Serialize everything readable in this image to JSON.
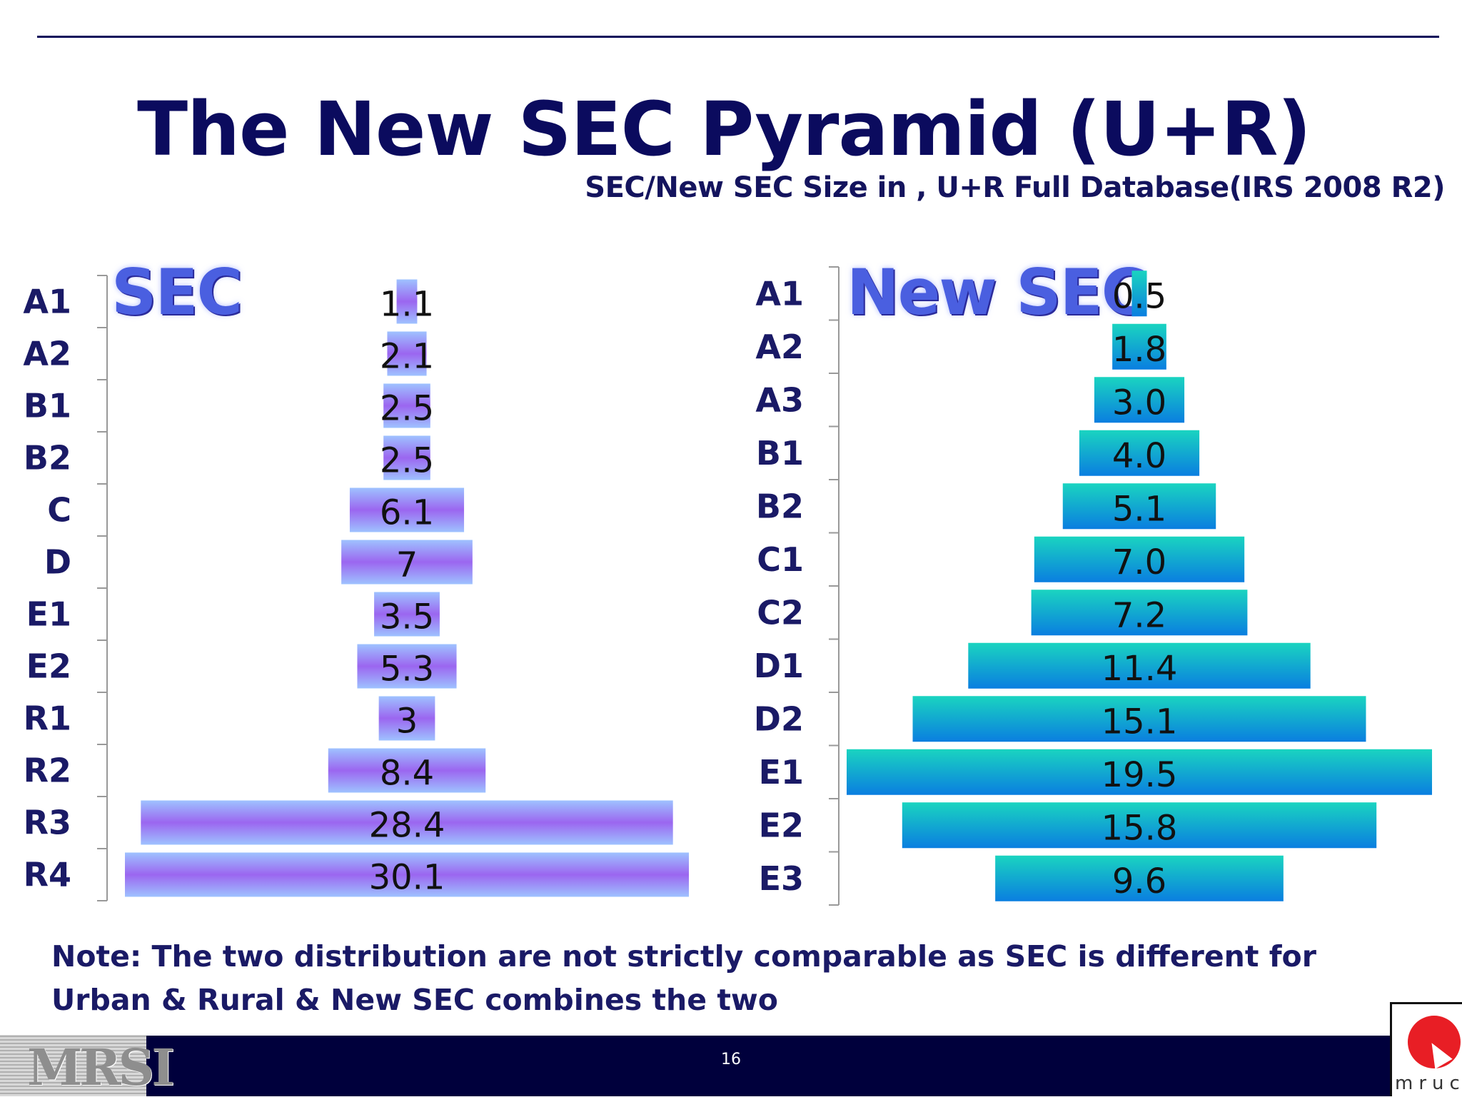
{
  "title": "The New SEC Pyramid (U+R)",
  "subtitle": "SEC/New SEC Size in , U+R  Full Database(IRS 2008 R2)",
  "note": "Note: The two distribution are not strictly comparable as SEC is different for Urban & Rural & New SEC combines the two",
  "footer": {
    "page_number": "16",
    "left_logo_text": "MRSI",
    "right_logo_text": "mruc"
  },
  "colors": {
    "title": "#0b0b5e",
    "footer_bg": "#00003c",
    "sec_bar_edge": "#9ec2ff",
    "sec_bar_center": "#9b66f0",
    "newsec_bar_top": "#1ad4c0",
    "newsec_bar_bottom": "#0a7ee0"
  },
  "chart_data": [
    {
      "type": "bar",
      "orientation": "horizontal-centered",
      "title": "SEC",
      "categories": [
        "A1",
        "A2",
        "B1",
        "B2",
        "C",
        "D",
        "E1",
        "E2",
        "R1",
        "R2",
        "R3",
        "R4"
      ],
      "values": [
        1.1,
        2.1,
        2.5,
        2.5,
        6.1,
        7,
        3.5,
        5.3,
        3,
        8.4,
        28.4,
        30.1
      ],
      "value_labels": [
        "1.1",
        "2.1",
        "2.5",
        "2.5",
        "6.1",
        "7",
        "3.5",
        "5.3",
        "3",
        "8.4",
        "28.4",
        "30.1"
      ],
      "xlim": [
        0,
        30.1
      ],
      "grid": false,
      "legend": "none"
    },
    {
      "type": "bar",
      "orientation": "horizontal-centered",
      "title": "New SEC",
      "categories": [
        "A1",
        "A2",
        "A3",
        "B1",
        "B2",
        "C1",
        "C2",
        "D1",
        "D2",
        "E1",
        "E2",
        "E3"
      ],
      "values": [
        0.5,
        1.8,
        3.0,
        4.0,
        5.1,
        7.0,
        7.2,
        11.4,
        15.1,
        19.5,
        15.8,
        9.6
      ],
      "value_labels": [
        "0.5",
        "1.8",
        "3.0",
        "4.0",
        "5.1",
        "7.0",
        "7.2",
        "11.4",
        "15.1",
        "19.5",
        "15.8",
        "9.6"
      ],
      "xlim": [
        0,
        19.5
      ],
      "grid": false,
      "legend": "none"
    }
  ]
}
